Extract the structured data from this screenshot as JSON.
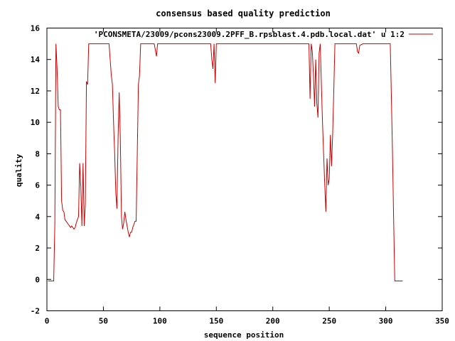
{
  "chart_data": {
    "type": "line",
    "title": "consensus based quality prediction",
    "xlabel": "sequence position",
    "ylabel": "quality",
    "xlim": [
      0,
      350
    ],
    "ylim": [
      -2,
      16
    ],
    "xticks": [
      "0",
      "50",
      "100",
      "150",
      "200",
      "250",
      "300",
      "350"
    ],
    "yticks": [
      "-2",
      "0",
      "2",
      "4",
      "6",
      "8",
      "10",
      "12",
      "14",
      "16"
    ],
    "grid": false,
    "legend": "top-right",
    "series": [
      {
        "name": "'PCONSMETA/23009/pcons23009.2PFF_B.rpsblast.4.pdb.local.dat' u 1:2",
        "color": "#cc0000",
        "x": [
          1,
          2,
          3,
          4,
          5,
          6,
          7,
          8,
          9,
          10,
          11,
          12,
          13,
          14,
          15,
          16,
          17,
          18,
          19,
          20,
          21,
          22,
          23,
          24,
          25,
          26,
          27,
          28,
          29,
          30,
          31,
          32,
          33,
          34,
          35,
          36,
          37,
          38,
          45,
          52,
          55,
          56,
          57,
          58,
          59,
          60,
          61,
          62,
          63,
          64,
          65,
          66,
          67,
          68,
          69,
          70,
          71,
          72,
          73,
          74,
          75,
          76,
          77,
          78,
          79,
          80,
          81,
          82,
          83,
          84,
          85,
          90,
          95,
          96,
          97,
          98,
          100,
          110,
          120,
          130,
          140,
          145,
          146,
          147,
          148,
          149,
          150,
          151,
          160,
          180,
          200,
          220,
          230,
          232,
          233,
          234,
          235,
          236,
          237,
          238,
          239,
          240,
          241,
          242,
          243,
          244,
          245,
          246,
          247,
          248,
          249,
          250,
          251,
          252,
          253,
          254,
          255,
          256,
          260,
          270,
          273,
          274,
          275,
          276,
          277,
          280,
          290,
          300,
          303,
          304,
          305,
          306,
          307,
          308,
          310,
          315
        ],
        "y": [
          -0.1,
          -0.1,
          -0.1,
          -0.1,
          -0.1,
          -0.1,
          3.5,
          15.0,
          13.4,
          11.0,
          10.8,
          10.8,
          5.0,
          4.4,
          4.3,
          3.8,
          3.7,
          3.6,
          3.5,
          3.4,
          3.3,
          3.4,
          3.3,
          3.2,
          3.3,
          3.6,
          3.8,
          4.0,
          7.4,
          5.9,
          3.4,
          7.4,
          3.4,
          4.8,
          12.6,
          12.4,
          15.0,
          15.0,
          15.0,
          15.0,
          15.0,
          14.0,
          13.0,
          12.4,
          10.0,
          8.0,
          5.5,
          4.5,
          9.0,
          11.9,
          9.0,
          4.0,
          3.2,
          3.6,
          4.3,
          3.8,
          3.4,
          3.0,
          2.7,
          3.0,
          3.0,
          3.3,
          3.5,
          3.7,
          3.7,
          8.0,
          12.4,
          13.0,
          15.0,
          15.0,
          15.0,
          15.0,
          15.0,
          14.6,
          14.2,
          15.0,
          15.0,
          15.0,
          15.0,
          15.0,
          15.0,
          15.0,
          14.0,
          13.4,
          15.0,
          12.5,
          15.0,
          15.0,
          15.0,
          15.0,
          15.0,
          15.0,
          15.0,
          15.0,
          11.5,
          15.0,
          14.5,
          13.0,
          11.0,
          14.0,
          11.2,
          10.3,
          14.4,
          15.0,
          12.5,
          10.0,
          8.0,
          6.0,
          4.3,
          7.7,
          6.0,
          6.4,
          9.2,
          7.2,
          9.2,
          12.0,
          15.0,
          15.0,
          15.0,
          15.0,
          15.0,
          15.0,
          14.5,
          14.4,
          14.9,
          15.0,
          15.0,
          15.0,
          15.0,
          15.0,
          11.6,
          8.0,
          3.8,
          -0.1,
          -0.1,
          -0.1
        ]
      }
    ]
  }
}
